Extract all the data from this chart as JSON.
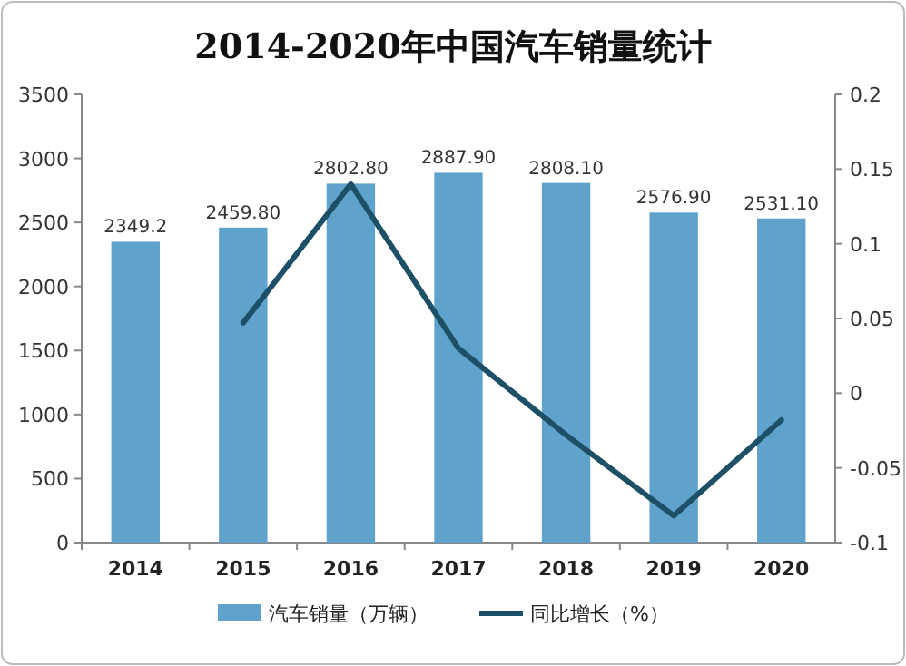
{
  "chart_data": {
    "type": "bar",
    "title": "2014-2020年中国汽车销量统计",
    "categories": [
      "2014",
      "2015",
      "2016",
      "2017",
      "2018",
      "2019",
      "2020"
    ],
    "series": [
      {
        "name": "汽车销量（万辆）",
        "color": "#5fa2cc",
        "values": [
          2349.2,
          2459.8,
          2802.8,
          2887.9,
          2808.1,
          2576.9,
          2531.1
        ],
        "value_labels": [
          "2349.2",
          "2459.80",
          "2802.80",
          "2887.90",
          "2808.10",
          "2576.90",
          "2531.10"
        ]
      },
      {
        "name": "同比增长（%）",
        "type": "line",
        "axis": "y2",
        "color": "#1d4f66",
        "values": [
          null,
          0.047,
          0.14,
          0.03,
          -0.028,
          -0.082,
          -0.018
        ]
      }
    ],
    "ylim": [
      0,
      3500
    ],
    "yticks": [
      0,
      500,
      1000,
      1500,
      2000,
      2500,
      3000,
      3500
    ],
    "y2lim": [
      -0.1,
      0.2
    ],
    "y2ticks": [
      -0.1,
      -0.05,
      0,
      0.05,
      0.1,
      0.15,
      0.2
    ],
    "grid": false,
    "legend": "bottom",
    "marker": "none",
    "line_style": "solid"
  }
}
